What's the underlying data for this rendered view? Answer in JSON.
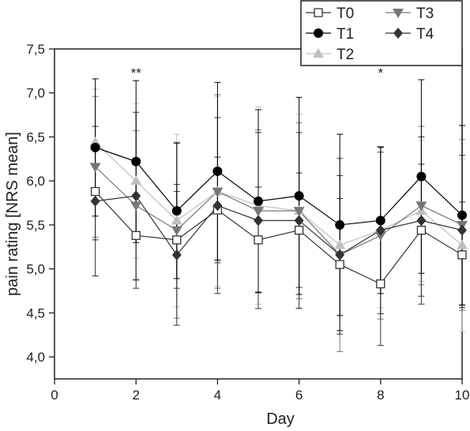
{
  "chart_data": {
    "type": "line",
    "xlabel": "Day",
    "ylabel": "pain rating [NRS mean]",
    "xlim": [
      0,
      10
    ],
    "ylim": [
      3.75,
      7.5
    ],
    "xticks": [
      "0",
      "2",
      "4",
      "6",
      "8",
      "10"
    ],
    "yticks": [
      "4,0",
      "4,5",
      "5,0",
      "5,5",
      "6,0",
      "6,5",
      "7,0",
      "7,5"
    ],
    "legend_position": "top-right",
    "x": [
      1,
      2,
      3,
      4,
      5,
      6,
      7,
      8,
      9,
      10
    ],
    "series": [
      {
        "name": "T0",
        "marker": "square-open",
        "color": "#333333",
        "values": [
          5.88,
          5.38,
          5.33,
          5.67,
          5.33,
          5.44,
          5.05,
          4.83,
          5.44,
          5.16
        ],
        "errors": [
          0.55,
          0.6,
          0.55,
          0.6,
          0.6,
          0.65,
          0.75,
          0.7,
          0.75,
          0.6
        ]
      },
      {
        "name": "T1",
        "marker": "circle",
        "color": "#000000",
        "values": [
          6.38,
          6.22,
          5.66,
          6.11,
          5.77,
          5.83,
          5.5,
          5.55,
          6.05,
          5.61
        ],
        "errors": [
          0.78,
          0.92,
          0.77,
          1.01,
          1.04,
          1.12,
          1.03,
          0.83,
          1.1,
          1.02
        ]
      },
      {
        "name": "T2",
        "marker": "triangle-up",
        "color": "#c0c0c0",
        "values": [
          6.44,
          6.0,
          5.55,
          5.88,
          5.72,
          5.66,
          5.27,
          5.44,
          5.66,
          5.27
        ],
        "errors": [
          0.6,
          0.88,
          0.98,
          1.08,
          1.12,
          1.1,
          0.98,
          0.88,
          0.8,
          0.98
        ]
      },
      {
        "name": "T3",
        "marker": "triangle-down",
        "color": "#777777",
        "values": [
          6.16,
          5.72,
          5.44,
          5.88,
          5.66,
          5.66,
          5.16,
          5.38,
          5.72,
          5.5
        ],
        "errors": [
          0.8,
          0.85,
          1.0,
          1.1,
          0.92,
          1.0,
          1.1,
          0.95,
          0.9,
          0.97
        ]
      },
      {
        "name": "T4",
        "marker": "diamond",
        "color": "#333333",
        "values": [
          5.77,
          5.83,
          5.16,
          5.72,
          5.55,
          5.55,
          5.16,
          5.44,
          5.55,
          5.44
        ],
        "errors": [
          0.85,
          0.95,
          0.8,
          1.0,
          1.0,
          1.0,
          0.9,
          0.95,
          0.95,
          0.85
        ]
      }
    ],
    "annotations": [
      {
        "x": 2,
        "text": "**"
      },
      {
        "x": 8,
        "text": "*"
      }
    ]
  }
}
